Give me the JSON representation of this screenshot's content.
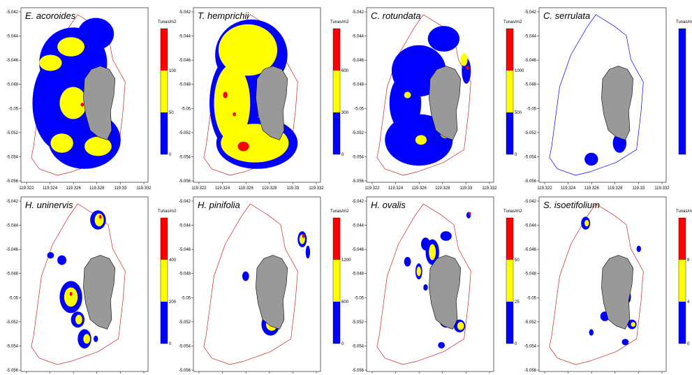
{
  "figure": {
    "title": ""
  },
  "colors": {
    "blue": "#0000ff",
    "yellow": "#ffff00",
    "red": "#ff0000",
    "island": "#999999",
    "boundary": "#cc2222"
  },
  "chart_data": [
    {
      "type": "heatmap",
      "title": "E. acoroides",
      "xlim": [
        119.321,
        119.332
      ],
      "ylim": [
        -5.056,
        -5.0415
      ],
      "x_ticks": [
        "119.322",
        "119.324",
        "119.326",
        "119.328",
        "119.33",
        "119.332"
      ],
      "y_ticks": [
        "-5.042",
        "-5.044",
        "-5.046",
        "-5.048",
        "-5.05",
        "-5.052",
        "-5.054",
        "-5.056"
      ],
      "legend": {
        "title": "Tunas/m2",
        "tick_labels": [
          "100",
          "50",
          "0"
        ],
        "classes": [
          "blue",
          "yellow",
          "red"
        ]
      },
      "boundary_color": "red"
    },
    {
      "type": "heatmap",
      "title": "T. hemprichii",
      "xlim": [
        119.321,
        119.332
      ],
      "ylim": [
        -5.056,
        -5.0415
      ],
      "x_ticks": [
        "119.322",
        "119.324",
        "119.326",
        "119.328",
        "119.33",
        "119.332"
      ],
      "y_ticks": [
        "-5.042",
        "-5.044",
        "-5.046",
        "-5.048",
        "-5.05",
        "-5.052",
        "-5.054",
        "-5.056"
      ],
      "legend": {
        "title": "Tunas/m2",
        "tick_labels": [
          "600",
          "300",
          "0"
        ],
        "classes": [
          "blue",
          "yellow",
          "red"
        ]
      },
      "boundary_color": "red"
    },
    {
      "type": "heatmap",
      "title": "C. rotundata",
      "xlim": [
        119.321,
        119.332
      ],
      "ylim": [
        -5.056,
        -5.0415
      ],
      "x_ticks": [
        "119.322",
        "119.324",
        "119.326",
        "119.328",
        "119.33",
        "119.332"
      ],
      "y_ticks": [
        "-5.042",
        "-5.044",
        "-5.046",
        "-5.048",
        "-5.05",
        "-5.052",
        "-5.054",
        "-5.056"
      ],
      "legend": {
        "title": "Tunas/m2",
        "tick_labels": [
          "1000",
          "500",
          "0"
        ],
        "classes": [
          "blue",
          "yellow",
          "red"
        ]
      },
      "boundary_color": "red"
    },
    {
      "type": "heatmap",
      "title": "C. serrulata",
      "xlim": [
        119.321,
        119.332
      ],
      "ylim": [
        -5.056,
        -5.0415
      ],
      "x_ticks": [
        "119.322",
        "119.324",
        "119.326",
        "119.328",
        "119.33",
        "119.332"
      ],
      "y_ticks": [
        "-5.042",
        "-5.044",
        "-5.046",
        "-5.048",
        "-5.05",
        "-5.052",
        "-5.054",
        "-5.056"
      ],
      "legend": {
        "title": "Tunas/m2",
        "tick_labels": [],
        "classes": [
          "blue"
        ]
      },
      "boundary_color": "blue"
    },
    {
      "type": "heatmap",
      "title": "H. uninervis",
      "xlim": [
        119.321,
        119.332
      ],
      "ylim": [
        -5.056,
        -5.0415
      ],
      "x_ticks": [
        "119.322",
        "119.324",
        "119.326",
        "119.328",
        "119.33",
        "119.332"
      ],
      "y_ticks": [
        "-5.042",
        "-5.044",
        "-5.046",
        "-5.048",
        "-5.05",
        "-5.052",
        "-5.054",
        "-5.056"
      ],
      "legend": {
        "title": "Tunas/m2",
        "tick_labels": [
          "400",
          "200",
          "0"
        ],
        "classes": [
          "blue",
          "yellow",
          "red"
        ]
      },
      "boundary_color": "red"
    },
    {
      "type": "heatmap",
      "title": "H. pinifolia",
      "xlim": [
        119.321,
        119.332
      ],
      "ylim": [
        -5.056,
        -5.0415
      ],
      "x_ticks": [
        "119.322",
        "119.324",
        "119.326",
        "119.328",
        "119.33",
        "119.332"
      ],
      "y_ticks": [
        "-5.042",
        "-5.044",
        "-5.046",
        "-5.048",
        "-5.05",
        "-5.052",
        "-5.054",
        "-5.056"
      ],
      "legend": {
        "title": "Tunas/m2",
        "tick_labels": [
          "1200",
          "600",
          "0"
        ],
        "classes": [
          "blue",
          "yellow",
          "red"
        ]
      },
      "boundary_color": "red"
    },
    {
      "type": "heatmap",
      "title": "H. ovalis",
      "xlim": [
        119.321,
        119.332
      ],
      "ylim": [
        -5.056,
        -5.0415
      ],
      "x_ticks": [
        "119.322",
        "119.324",
        "119.326",
        "119.328",
        "119.33",
        "119.332"
      ],
      "y_ticks": [
        "-5.042",
        "-5.044",
        "-5.046",
        "-5.048",
        "-5.05",
        "-5.052",
        "-5.054",
        "-5.056"
      ],
      "legend": {
        "title": "Tunas/m2",
        "tick_labels": [
          "50",
          "25",
          "0"
        ],
        "classes": [
          "blue",
          "yellow",
          "red"
        ]
      },
      "boundary_color": "red"
    },
    {
      "type": "heatmap",
      "title": "S. isoetifolium",
      "xlim": [
        119.321,
        119.332
      ],
      "ylim": [
        -5.056,
        -5.0415
      ],
      "x_ticks": [
        "119.322",
        "119.324",
        "119.326",
        "119.328",
        "119.33",
        "119.332"
      ],
      "y_ticks": [
        "-5.042",
        "-5.044",
        "-5.046",
        "-5.048",
        "-5.05",
        "-5.052",
        "-5.054",
        "-5.056"
      ],
      "legend": {
        "title": "Tunas/m2",
        "tick_labels": [
          "8",
          "4",
          "0"
        ],
        "classes": [
          "blue",
          "yellow",
          "red"
        ]
      },
      "boundary_color": "red"
    }
  ]
}
